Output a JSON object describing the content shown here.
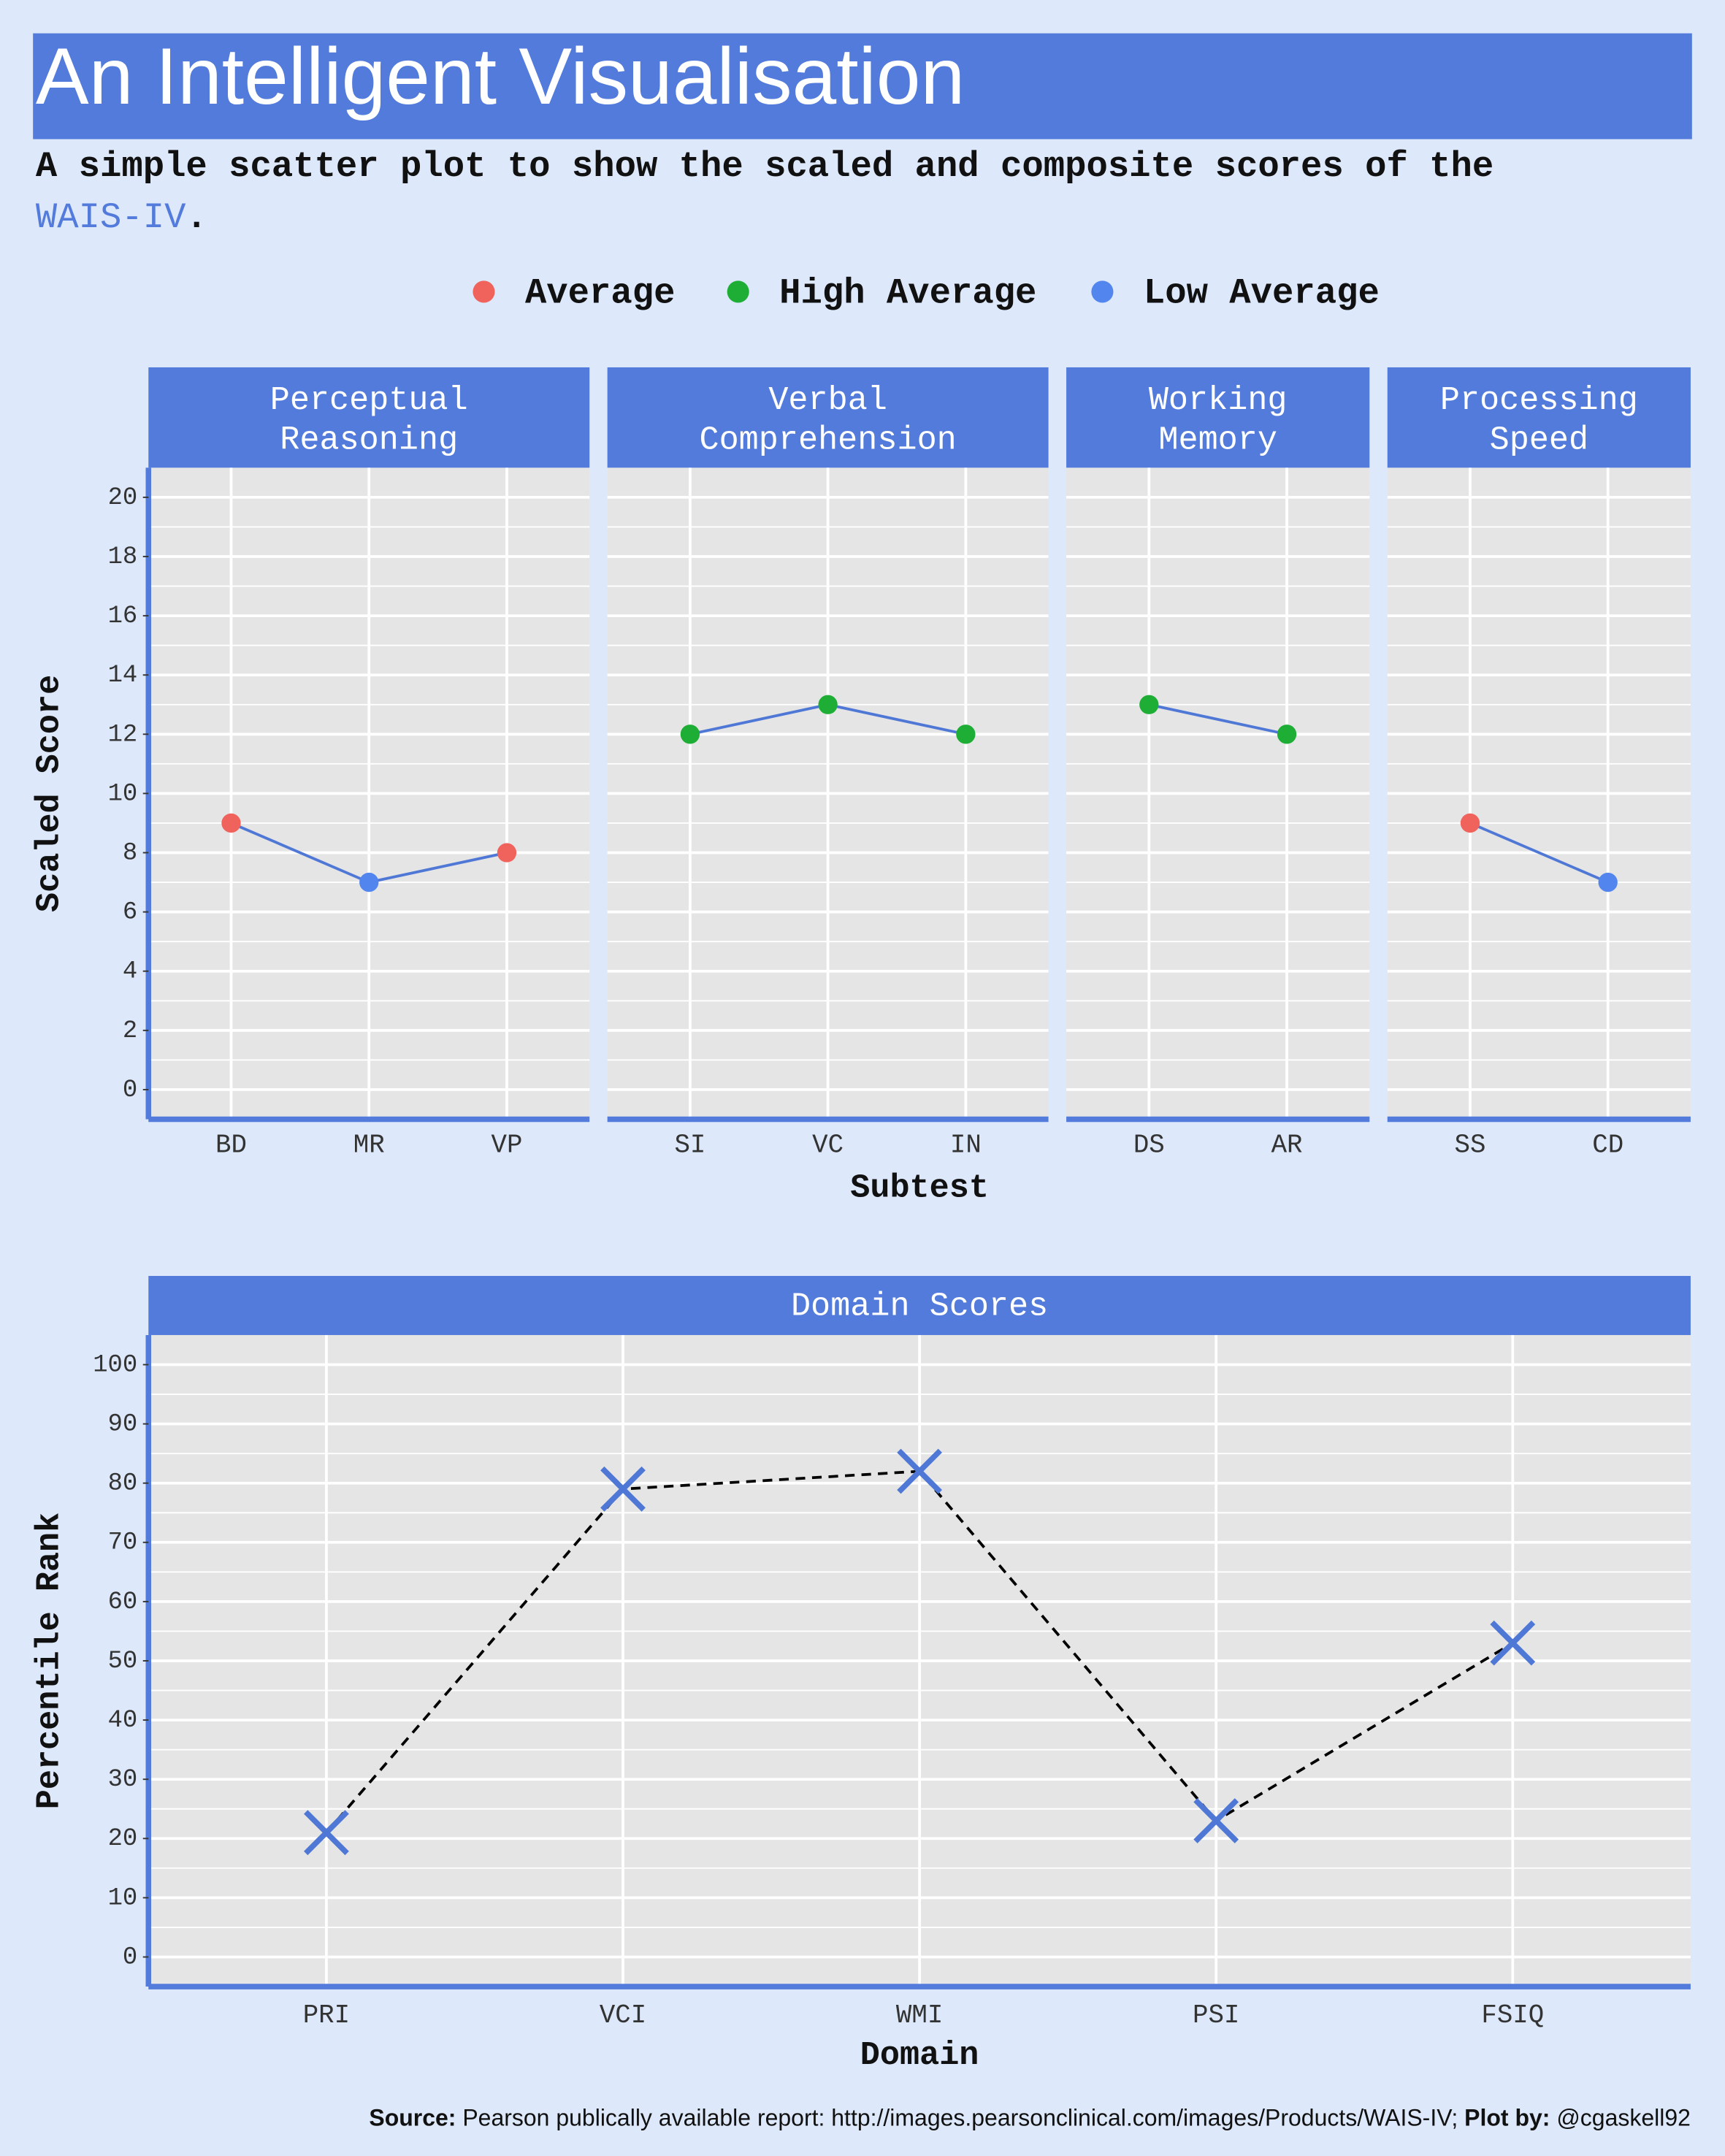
{
  "header": {
    "title": "An Intelligent Visualisation",
    "subtitle": {
      "text": "A simple scatter plot to show the scaled and composite scores of the",
      "link": "WAIS-IV",
      "end": "."
    }
  },
  "chart_data": [
    {
      "type": "scatter",
      "ylabel": "Scaled Score",
      "xlabel": "Subtest",
      "ylim": [
        -1,
        21
      ],
      "yticks": [
        0,
        2,
        4,
        6,
        8,
        10,
        12,
        14,
        16,
        18,
        20
      ],
      "grid": true,
      "line_color": "#4f78d6",
      "classes": [
        {
          "name": "Average",
          "color": "#f0625c"
        },
        {
          "name": "High Average",
          "color": "#1fae35"
        },
        {
          "name": "Low Average",
          "color": "#5286ee"
        }
      ],
      "facets": [
        {
          "title": [
            "Perceptual",
            "Reasoning"
          ],
          "x": [
            "BD",
            "MR",
            "VP"
          ],
          "values": [
            9,
            7,
            8
          ],
          "class": [
            0,
            2,
            0
          ]
        },
        {
          "title": [
            "Verbal",
            "Comprehension"
          ],
          "x": [
            "SI",
            "VC",
            "IN"
          ],
          "values": [
            12,
            13,
            12
          ],
          "class": [
            1,
            1,
            1
          ]
        },
        {
          "title": [
            "Working",
            "Memory"
          ],
          "x": [
            "DS",
            "AR"
          ],
          "values": [
            13,
            12
          ],
          "class": [
            1,
            1
          ]
        },
        {
          "title": [
            "Processing",
            "Speed"
          ],
          "x": [
            "SS",
            "CD"
          ],
          "values": [
            9,
            7
          ],
          "class": [
            0,
            2
          ]
        }
      ]
    },
    {
      "type": "line",
      "title": "Domain Scores",
      "ylabel": "Percentile Rank",
      "xlabel": "Domain",
      "categories": [
        "PRI",
        "VCI",
        "WMI",
        "PSI",
        "FSIQ"
      ],
      "values": [
        21,
        79,
        82,
        23,
        53
      ],
      "ylim": [
        -5,
        105
      ],
      "yticks": [
        0,
        10,
        20,
        30,
        40,
        50,
        60,
        70,
        80,
        90,
        100
      ],
      "grid": true,
      "color": "#4f78d6",
      "line_color": "#000000"
    }
  ],
  "footer": {
    "source_label": "Source:",
    "source": "Pearson publically available report: http://images.pearsonclinical.com/images/Products/WAIS-IV;",
    "plot_label": "Plot by:",
    "plot": "@cgaskell92"
  }
}
